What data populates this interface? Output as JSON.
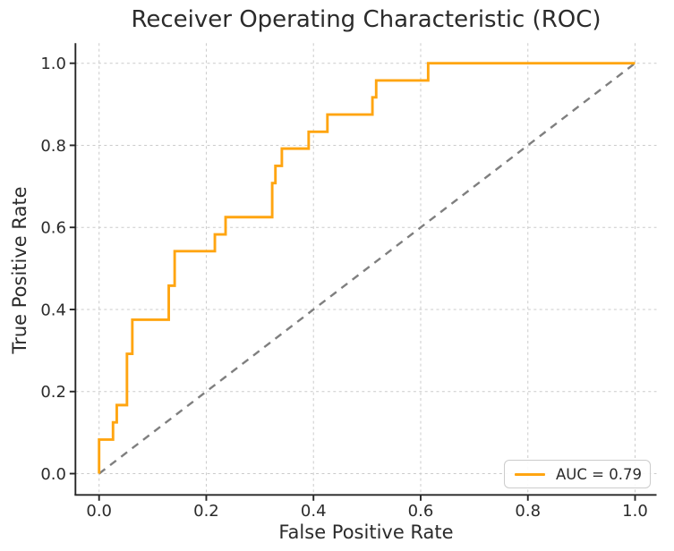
{
  "title": "Receiver Operating Characteristic (ROC)",
  "axes": {
    "xlabel": "False Positive Rate",
    "ylabel": "True Positive Rate",
    "x_tick_labels": [
      "0.0",
      "0.2",
      "0.4",
      "0.6",
      "0.8",
      "1.0"
    ],
    "y_tick_labels": [
      "0.0",
      "0.2",
      "0.4",
      "0.6",
      "0.8",
      "1.0"
    ],
    "x_tick_values": [
      0,
      0.2,
      0.4,
      0.6,
      0.8,
      1.0
    ],
    "y_tick_values": [
      0,
      0.2,
      0.4,
      0.6,
      0.8,
      1.0
    ]
  },
  "legend": {
    "label": "AUC = 0.79",
    "position": "lower right"
  },
  "colors": {
    "roc_curve": "#ffa511",
    "diagonal": "#7f7f7f",
    "grid": "#cbcbcb",
    "spine": "#262626",
    "tick": "#262626",
    "text": "#2b2b2b",
    "legend_border": "#cccccc",
    "legend_bg": "#ffffff"
  },
  "chart_data": {
    "type": "line",
    "title": "Receiver Operating Characteristic (ROC)",
    "xlabel": "False Positive Rate",
    "ylabel": "True Positive Rate",
    "xlim": [
      -0.044,
      1.044
    ],
    "ylim": [
      -0.052,
      1.052
    ],
    "grid": true,
    "grid_style": "dashed",
    "legend_position": "lower right",
    "auc": 0.79,
    "series": [
      {
        "name": "ROC curve (AUC = 0.79)",
        "style": "step",
        "color": "#ffa511",
        "fpr": [
          0,
          0,
          0.026,
          0.026,
          0.033,
          0.033,
          0.052,
          0.052,
          0.062,
          0.062,
          0.13,
          0.13,
          0.141,
          0.141,
          0.216,
          0.216,
          0.236,
          0.236,
          0.323,
          0.323,
          0.329,
          0.329,
          0.341,
          0.341,
          0.391,
          0.391,
          0.426,
          0.426,
          0.51,
          0.51,
          0.517,
          0.517,
          0.614,
          0.614,
          1.0
        ],
        "tpr": [
          0,
          0.083,
          0.083,
          0.125,
          0.125,
          0.167,
          0.167,
          0.292,
          0.292,
          0.375,
          0.375,
          0.458,
          0.458,
          0.542,
          0.542,
          0.583,
          0.583,
          0.625,
          0.625,
          0.708,
          0.708,
          0.75,
          0.75,
          0.792,
          0.792,
          0.833,
          0.833,
          0.875,
          0.875,
          0.917,
          0.917,
          0.958,
          0.958,
          1.0,
          1.0
        ]
      },
      {
        "name": "chance-diagonal",
        "style": "dashed",
        "color": "#7f7f7f",
        "x": [
          0,
          1
        ],
        "y": [
          0,
          1
        ]
      }
    ]
  }
}
